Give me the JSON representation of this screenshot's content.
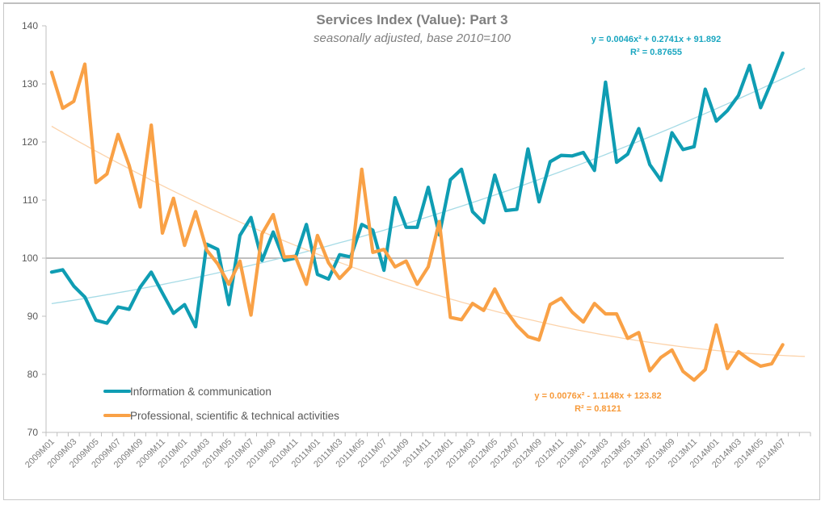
{
  "chart_data": {
    "type": "line",
    "title": "Services Index (Value): Part 3",
    "subtitle": "seasonally adjusted, base 2010=100",
    "xlabel": "",
    "ylabel": "",
    "ylim": [
      70,
      140
    ],
    "yticks": [
      70,
      80,
      90,
      100,
      110,
      120,
      130,
      140
    ],
    "reference_line": 100,
    "grid": false,
    "legend_position": "bottom-left",
    "x": [
      "2009M01",
      "2009M02",
      "2009M03",
      "2009M04",
      "2009M05",
      "2009M06",
      "2009M07",
      "2009M08",
      "2009M09",
      "2009M10",
      "2009M11",
      "2009M12",
      "2010M01",
      "2010M02",
      "2010M03",
      "2010M04",
      "2010M05",
      "2010M06",
      "2010M07",
      "2010M08",
      "2010M09",
      "2010M10",
      "2010M11",
      "2010M12",
      "2011M01",
      "2011M02",
      "2011M03",
      "2011M04",
      "2011M05",
      "2011M06",
      "2011M07",
      "2011M08",
      "2011M09",
      "2011M10",
      "2011M11",
      "2011M12",
      "2012M01",
      "2012M02",
      "2012M03",
      "2012M04",
      "2012M05",
      "2012M06",
      "2012M07",
      "2012M08",
      "2012M09",
      "2012M10",
      "2012M11",
      "2012M12",
      "2013M01",
      "2013M02",
      "2013M03",
      "2013M04",
      "2013M05",
      "2013M06",
      "2013M07",
      "2013M08",
      "2013M09",
      "2013M10",
      "2013M11",
      "2013M12",
      "2014M01",
      "2014M02",
      "2014M03",
      "2014M04",
      "2014M05",
      "2014M06",
      "2014M07",
      "",
      ""
    ],
    "xtick_labels": [
      "2009M01",
      "2009M03",
      "2009M05",
      "2009M07",
      "2009M09",
      "2009M11",
      "2010M01",
      "2010M03",
      "2010M05",
      "2010M07",
      "2010M09",
      "2010M11",
      "2011M01",
      "2011M03",
      "2011M05",
      "2011M07",
      "2011M09",
      "2011M11",
      "2012M01",
      "2012M03",
      "2012M05",
      "2012M07",
      "2012M09",
      "2012M11",
      "2013M01",
      "2013M03",
      "2013M05",
      "2013M07",
      "2013M09",
      "2013M11",
      "2014M01",
      "2014M03",
      "2014M05",
      "2014M07"
    ],
    "series": [
      {
        "name": "Information & communication",
        "color": "#0f9db3",
        "trend_color": "#a6dbe6",
        "trendline": {
          "type": "polynomial",
          "order": 2,
          "equation": "y = 0.0046x² + 0.2741x + 91.892",
          "r2": "R² = 0.87655",
          "coefficients": [
            0.0046,
            0.2741,
            91.892
          ]
        },
        "values": [
          97.6,
          98.0,
          95.2,
          93.3,
          89.3,
          88.8,
          91.6,
          91.2,
          95.0,
          97.6,
          94.0,
          90.5,
          92.0,
          88.2,
          102.4,
          101.5,
          92.0,
          103.9,
          107.0,
          99.6,
          104.5,
          99.6,
          100.0,
          105.8,
          97.2,
          96.4,
          100.6,
          100.2,
          105.8,
          104.8,
          97.9,
          110.4,
          105.3,
          105.3,
          112.2,
          104.0,
          113.5,
          115.3,
          108.0,
          106.1,
          114.3,
          108.2,
          108.4,
          118.8,
          109.7,
          116.6,
          117.7,
          117.6,
          118.2,
          115.1,
          130.3,
          116.5,
          117.9,
          122.3,
          116.1,
          113.4,
          121.6,
          118.7,
          119.2,
          129.1,
          123.6,
          125.4,
          128.0,
          133.2,
          125.9,
          130.4,
          135.3
        ]
      },
      {
        "name": "Professional, scientific & technical activities",
        "color": "#f9a146",
        "trend_color": "#fcd3ab",
        "trendline": {
          "type": "polynomial",
          "order": 2,
          "equation": "y = 0.0076x² - 1.1148x + 123.82",
          "r2": "R² = 0.8121",
          "coefficients": [
            0.0076,
            -1.1148,
            123.82
          ]
        },
        "values": [
          132.0,
          125.8,
          127.0,
          133.4,
          113.0,
          114.5,
          121.3,
          116.0,
          108.8,
          122.9,
          104.3,
          110.3,
          102.2,
          108.0,
          101.4,
          99.0,
          95.5,
          99.5,
          90.2,
          104.2,
          107.5,
          100.2,
          100.3,
          95.5,
          103.9,
          99.2,
          96.5,
          98.5,
          115.3,
          101.0,
          101.5,
          98.5,
          99.5,
          95.5,
          98.5,
          106.3,
          89.8,
          89.4,
          92.2,
          91.0,
          94.7,
          91.0,
          88.4,
          86.5,
          85.9,
          92.0,
          93.1,
          90.7,
          89.0,
          92.2,
          90.4,
          90.4,
          86.2,
          87.2,
          80.6,
          82.9,
          84.2,
          80.5,
          79.0,
          80.8,
          88.5,
          81.0,
          83.9,
          82.5,
          81.4,
          81.8,
          85.1
        ]
      }
    ]
  }
}
